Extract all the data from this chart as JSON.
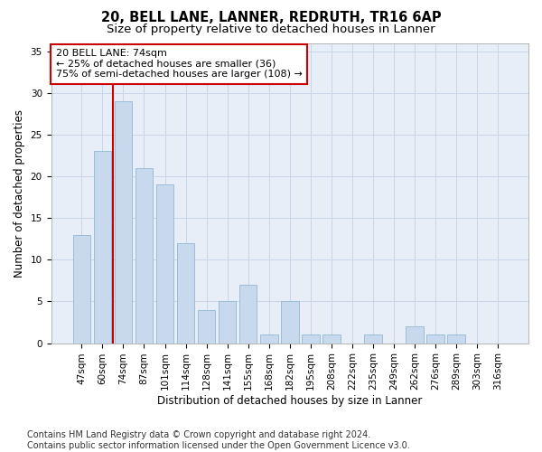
{
  "title_line1": "20, BELL LANE, LANNER, REDRUTH, TR16 6AP",
  "title_line2": "Size of property relative to detached houses in Lanner",
  "xlabel": "Distribution of detached houses by size in Lanner",
  "ylabel": "Number of detached properties",
  "categories": [
    "47sqm",
    "60sqm",
    "74sqm",
    "87sqm",
    "101sqm",
    "114sqm",
    "128sqm",
    "141sqm",
    "155sqm",
    "168sqm",
    "182sqm",
    "195sqm",
    "208sqm",
    "222sqm",
    "235sqm",
    "249sqm",
    "262sqm",
    "276sqm",
    "289sqm",
    "303sqm",
    "316sqm"
  ],
  "values": [
    13,
    23,
    29,
    21,
    19,
    12,
    4,
    5,
    7,
    1,
    5,
    1,
    1,
    0,
    1,
    0,
    2,
    1,
    1,
    0,
    0
  ],
  "highlight_index": 2,
  "bar_color": "#c9d9ed",
  "bar_edgecolor": "#9bbdd6",
  "highlight_line_color": "#cc0000",
  "annotation_text": "20 BELL LANE: 74sqm\n← 25% of detached houses are smaller (36)\n75% of semi-detached houses are larger (108) →",
  "annotation_box_edgecolor": "#cc0000",
  "annotation_box_facecolor": "#ffffff",
  "ylim": [
    0,
    36
  ],
  "yticks": [
    0,
    5,
    10,
    15,
    20,
    25,
    30,
    35
  ],
  "grid_color": "#c8d4e8",
  "background_color": "#e8eef8",
  "footer_text": "Contains HM Land Registry data © Crown copyright and database right 2024.\nContains public sector information licensed under the Open Government Licence v3.0.",
  "title_fontsize": 10.5,
  "subtitle_fontsize": 9.5,
  "axis_label_fontsize": 8.5,
  "tick_fontsize": 7.5,
  "annotation_fontsize": 8,
  "footer_fontsize": 7
}
